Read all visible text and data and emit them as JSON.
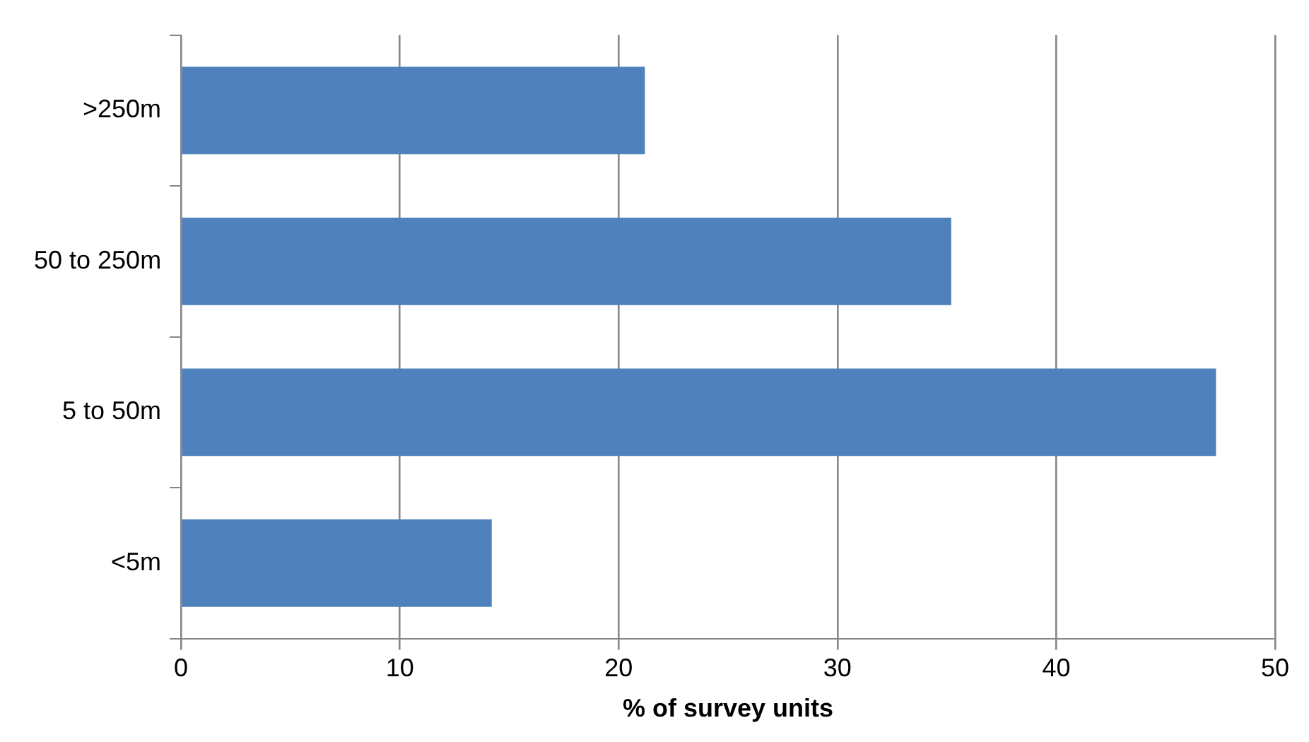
{
  "chart_data": {
    "type": "bar",
    "orientation": "horizontal",
    "categories": [
      ">250m",
      "50 to 250m",
      "5 to 50m",
      "<5m"
    ],
    "values": [
      21.2,
      35.2,
      47.3,
      14.2
    ],
    "color": "#4f81bd",
    "xlabel": "% of survey units",
    "xlim": [
      0,
      50
    ],
    "xticks": [
      0,
      10,
      20,
      30,
      40,
      50
    ],
    "grid": "x",
    "legend": false
  }
}
